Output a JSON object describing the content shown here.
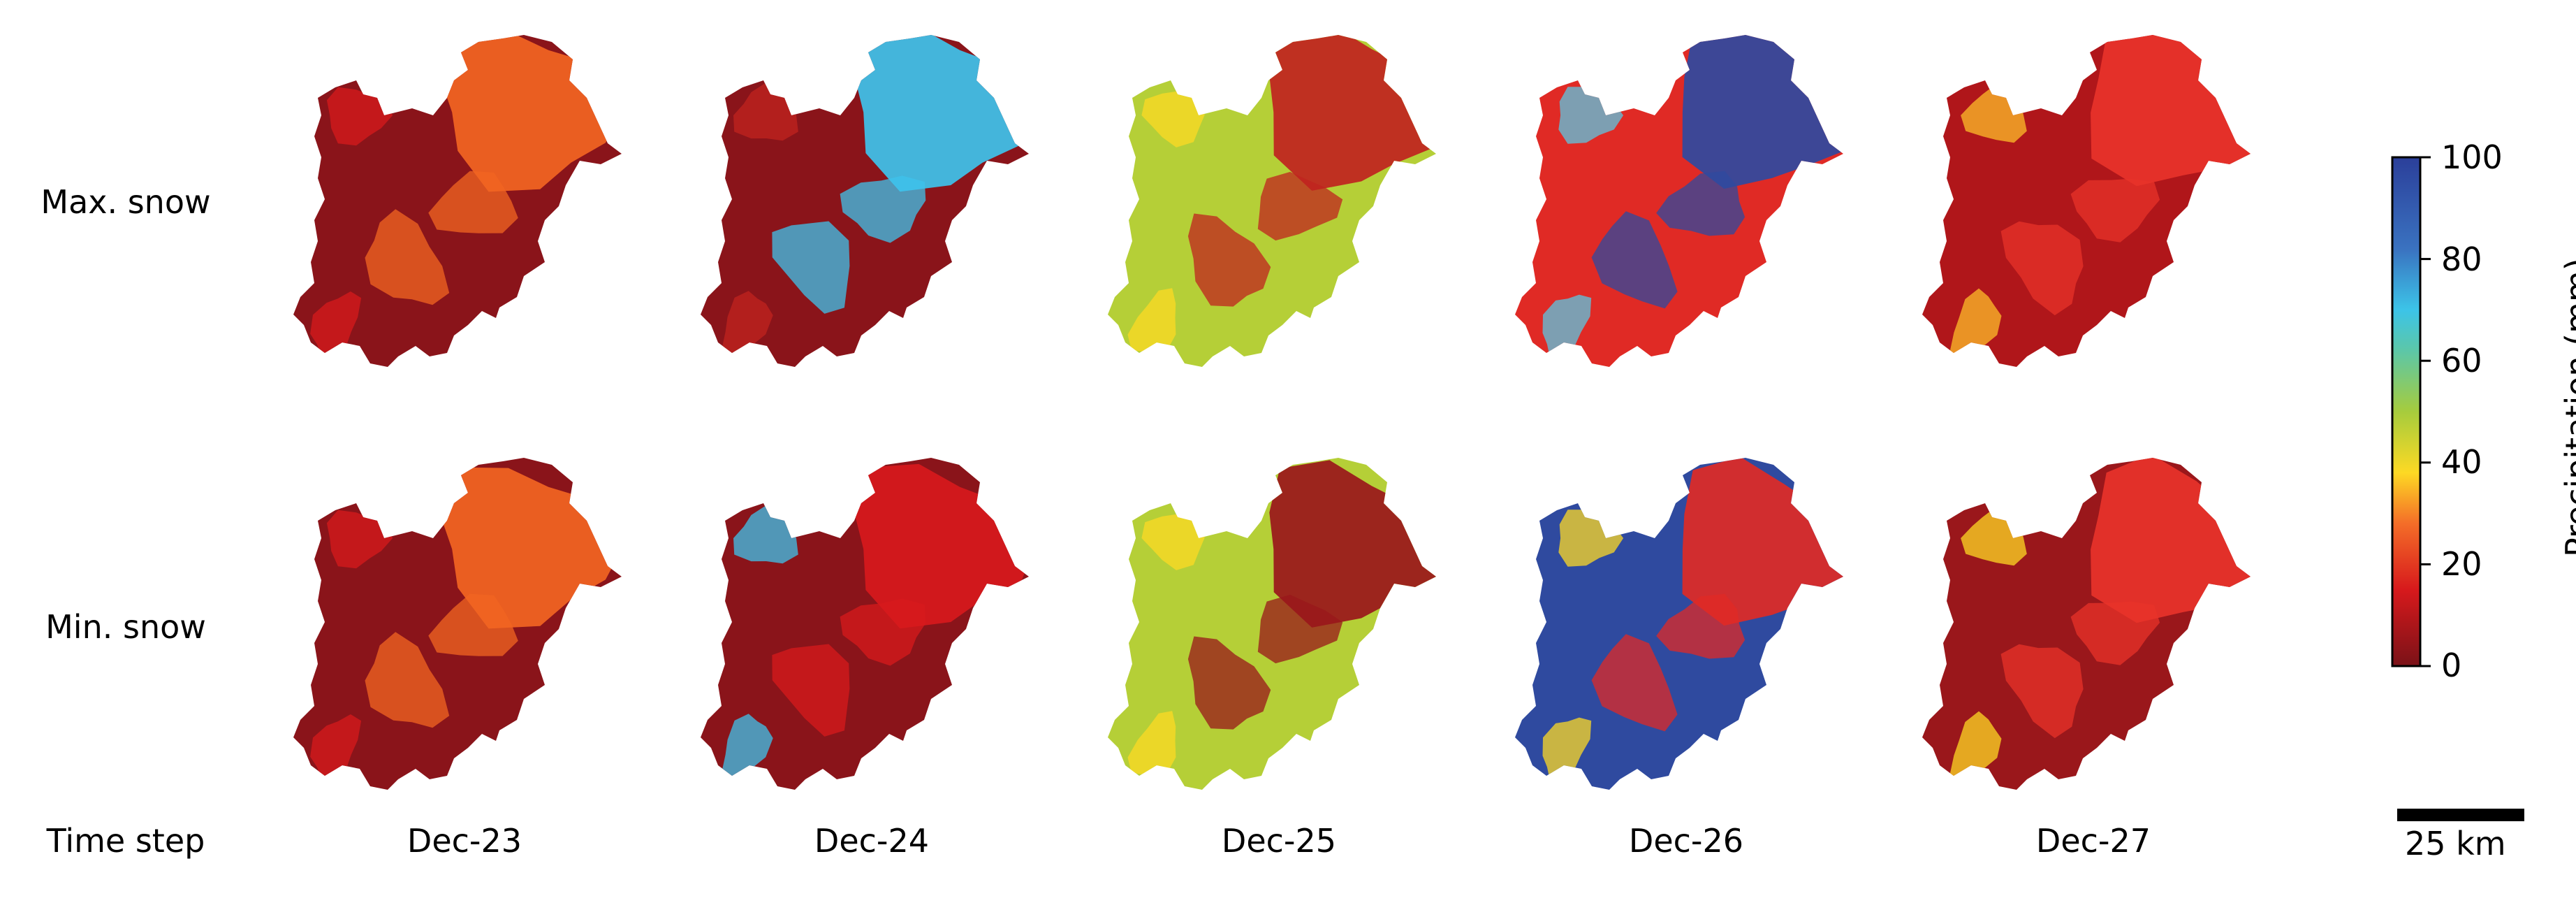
{
  "rows": [
    {
      "label": "Max. snow"
    },
    {
      "label": "Min. snow"
    }
  ],
  "time_step_label": "Time step",
  "columns": [
    {
      "label": "Dec-23"
    },
    {
      "label": "Dec-24"
    },
    {
      "label": "Dec-25"
    },
    {
      "label": "Dec-26"
    },
    {
      "label": "Dec-27"
    }
  ],
  "colorbar": {
    "title": "Precipitation (mm)",
    "ticks": [
      "0",
      "20",
      "40",
      "60",
      "80",
      "100"
    ],
    "range": [
      0,
      100
    ],
    "colors": [
      "#7a1218",
      "#d7191c",
      "#f46d28",
      "#fdd924",
      "#a6cc3d",
      "#3cc4e8",
      "#2b3f9a"
    ]
  },
  "scale_bar": {
    "label": "25 km"
  },
  "panel_colors": {
    "max": [
      {
        "base": "#8a141a",
        "patch": "#f26522",
        "patch2": "#d7191c"
      },
      {
        "base": "#8a141a",
        "patch": "#3ec3ec",
        "patch2": "#c0231f"
      },
      {
        "base": "#b5cf37",
        "patch": "#c0231f",
        "patch2": "#fdd924"
      },
      {
        "base": "#e02a25",
        "patch": "#2f4a9f",
        "patch2": "#5cc7e2"
      },
      {
        "base": "#b0161a",
        "patch": "#e8332a",
        "patch2": "#fdbe2a"
      }
    ],
    "min": [
      {
        "base": "#8a141a",
        "patch": "#f26522",
        "patch2": "#d7191c"
      },
      {
        "base": "#8a141a",
        "patch": "#d7191c",
        "patch2": "#3ec3ec"
      },
      {
        "base": "#b5cf37",
        "patch": "#9a171b",
        "patch2": "#fdd924"
      },
      {
        "base": "#2f4a9f",
        "patch": "#e02a25",
        "patch2": "#fdd924"
      },
      {
        "base": "#9a171b",
        "patch": "#e8332a",
        "patch2": "#fdd924"
      }
    ]
  }
}
